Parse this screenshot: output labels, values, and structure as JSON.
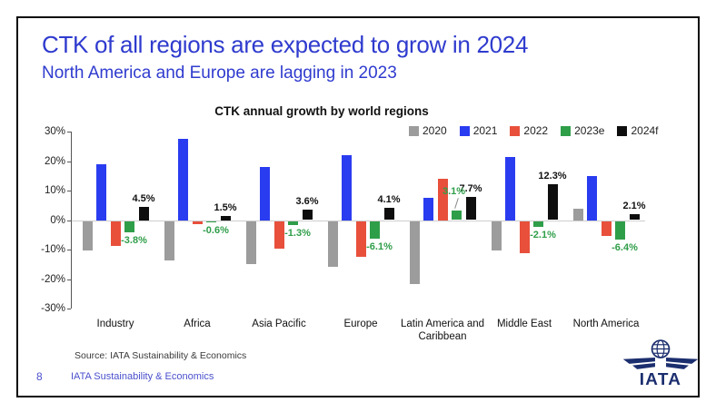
{
  "slide": {
    "title": "CTK of all regions are expected to grow in 2024",
    "subtitle": "North America and Europe are lagging in 2023",
    "source": "Source: IATA Sustainability & Economics",
    "page_number": "8",
    "footer": "IATA Sustainability & Economics",
    "logo_text": "IATA"
  },
  "colors": {
    "title_blue": "#2f3bce",
    "footer_blue": "#4a50cc",
    "logo_navy": "#1b2e6e",
    "bar_2020_gray": "#9c9c9c",
    "bar_2021_blue": "#2a3cf0",
    "bar_2022_red": "#e8503c",
    "bar_2023_green": "#2f9e49",
    "bar_2024_black": "#0e0e0e"
  },
  "chart_data": {
    "type": "bar",
    "title": "CTK annual growth by world regions",
    "categories": [
      "Industry",
      "Africa",
      "Asia Pacific",
      "Europe",
      "Latin America and Caribbean",
      "Middle East",
      "North America"
    ],
    "series": [
      {
        "name": "2020",
        "color": "#9c9c9c",
        "values": [
          -10,
          -13.5,
          -14.5,
          -15.5,
          -21.5,
          -10,
          4
        ]
      },
      {
        "name": "2021",
        "color": "#2a3cf0",
        "values": [
          19,
          27.5,
          18,
          22,
          7.5,
          21.5,
          15
        ]
      },
      {
        "name": "2022",
        "color": "#e8503c",
        "values": [
          -8.5,
          -1,
          -9.5,
          -12,
          14,
          -11,
          -5
        ]
      },
      {
        "name": "2023e",
        "color": "#2f9e49",
        "values": [
          -3.8,
          -0.6,
          -1.3,
          -6.1,
          3.1,
          -2.1,
          -6.4
        ]
      },
      {
        "name": "2024f",
        "color": "#0e0e0e",
        "values": [
          4.5,
          1.5,
          3.6,
          4.1,
          7.7,
          12.3,
          2.1
        ]
      }
    ],
    "value_labels_2023e": [
      "-3.8%",
      "-0.6%",
      "-1.3%",
      "-6.1%",
      "3.1%",
      "-2.1%",
      "-6.4%"
    ],
    "value_labels_2024f": [
      "4.5%",
      "1.5%",
      "3.6%",
      "4.1%",
      "7.7%",
      "12.3%",
      "2.1%"
    ],
    "ylim": [
      -30,
      30
    ],
    "yticks": [
      {
        "value": 30,
        "label": "30%"
      },
      {
        "value": 20,
        "label": "20%"
      },
      {
        "value": 10,
        "label": "10%"
      },
      {
        "value": 0,
        "label": "0%"
      },
      {
        "value": -10,
        "label": "-10%"
      },
      {
        "value": -20,
        "label": "-20%"
      },
      {
        "value": -30,
        "label": "-30%"
      }
    ],
    "grid": false,
    "legend_position": "top-right"
  }
}
